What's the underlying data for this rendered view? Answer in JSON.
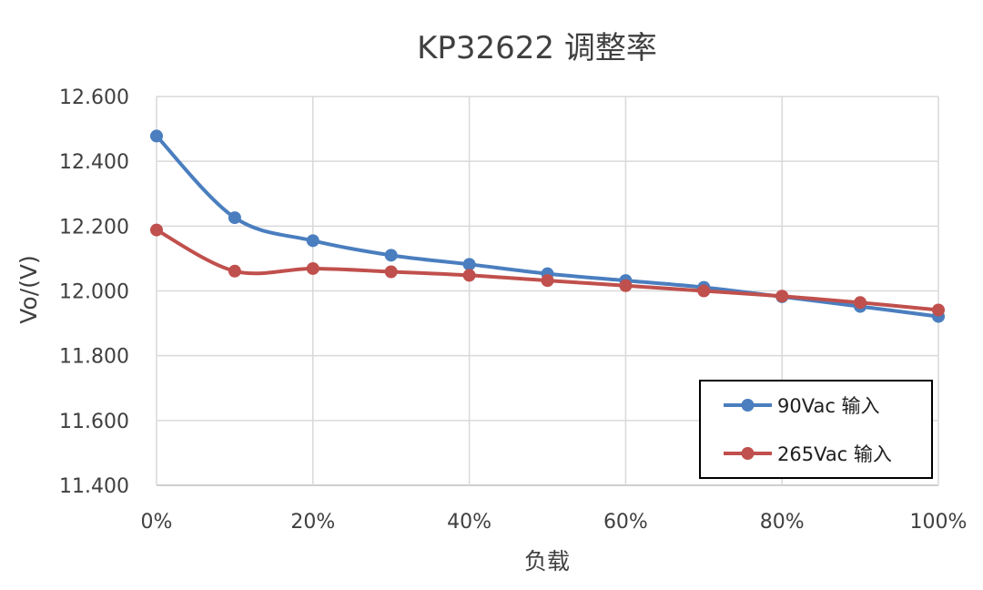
{
  "chart_data": {
    "type": "line",
    "title": "KP32622 调整率",
    "xlabel": "负载",
    "ylabel": "Vo/(V)",
    "x": [
      0,
      10,
      20,
      30,
      40,
      50,
      60,
      70,
      80,
      90,
      100
    ],
    "xticks": [
      0,
      20,
      40,
      60,
      80,
      100
    ],
    "xtick_labels": [
      "0%",
      "20%",
      "40%",
      "60%",
      "80%",
      "100%"
    ],
    "xlim": [
      0,
      100
    ],
    "ylim": [
      11.4,
      12.6
    ],
    "yticks": [
      11.4,
      11.6,
      11.8,
      12.0,
      12.2,
      12.4,
      12.6
    ],
    "ytick_labels": [
      "11.400",
      "11.600",
      "11.800",
      "12.000",
      "12.200",
      "12.400",
      "12.600"
    ],
    "grid": true,
    "legend_position": "bottom-right",
    "series": [
      {
        "name": "90Vac 输入",
        "color": "#4a7ebf",
        "values": [
          12.478,
          12.226,
          12.155,
          12.11,
          12.082,
          12.053,
          12.032,
          12.011,
          11.982,
          11.952,
          11.921
        ]
      },
      {
        "name": "265Vac 输入",
        "color": "#c0504d",
        "values": [
          12.188,
          12.061,
          12.069,
          12.059,
          12.048,
          12.032,
          12.016,
          12.0,
          11.984,
          11.964,
          11.941
        ]
      }
    ]
  }
}
